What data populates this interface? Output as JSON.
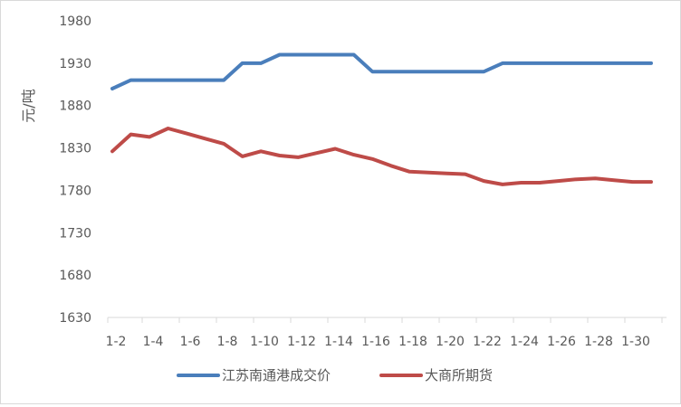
{
  "chart_data": {
    "type": "line",
    "title": "",
    "xlabel": "",
    "ylabel": "元/吨",
    "ylim": [
      1630,
      1980
    ],
    "yticks": [
      1630,
      1680,
      1730,
      1780,
      1830,
      1880,
      1930,
      1980
    ],
    "x_tick_labels": [
      "1-2",
      "1-4",
      "1-6",
      "1-8",
      "1-10",
      "1-12",
      "1-14",
      "1-16",
      "1-18",
      "1-20",
      "1-22",
      "1-24",
      "1-26",
      "1-28",
      "1-30"
    ],
    "grid": false,
    "legend_position": "bottom",
    "series": [
      {
        "name": "江苏南通港成交价",
        "color": "#4a7ebb",
        "x": [
          0,
          1,
          2,
          3,
          4,
          5,
          6,
          7,
          8,
          9,
          10,
          11,
          12,
          13,
          14,
          15,
          16,
          17,
          18,
          19,
          20,
          21,
          22,
          23,
          24,
          25,
          26,
          27,
          28,
          29
        ],
        "values": [
          1900,
          1910,
          1910,
          1910,
          1910,
          1910,
          1910,
          1930,
          1930,
          1940,
          1940,
          1940,
          1940,
          1940,
          1920,
          1920,
          1920,
          1920,
          1920,
          1920,
          1920,
          1930,
          1930,
          1930,
          1930,
          1930,
          1930,
          1930,
          1930,
          1930
        ]
      },
      {
        "name": "大商所期货",
        "color": "#be4b48",
        "x": [
          0,
          1,
          2,
          3,
          4,
          5,
          6,
          7,
          8,
          9,
          10,
          11,
          12,
          13,
          14,
          15,
          16,
          17,
          18,
          19,
          20,
          21,
          22,
          23,
          24,
          25,
          26,
          27,
          28,
          29
        ],
        "values": [
          1826,
          1846,
          1843,
          1853,
          1847,
          1841,
          1835,
          1820,
          1826,
          1821,
          1819,
          1824,
          1829,
          1822,
          1817,
          1809,
          1802,
          1801,
          1800,
          1799,
          1791,
          1787,
          1789,
          1789,
          1791,
          1793,
          1794,
          1792,
          1790,
          1790
        ]
      }
    ]
  }
}
